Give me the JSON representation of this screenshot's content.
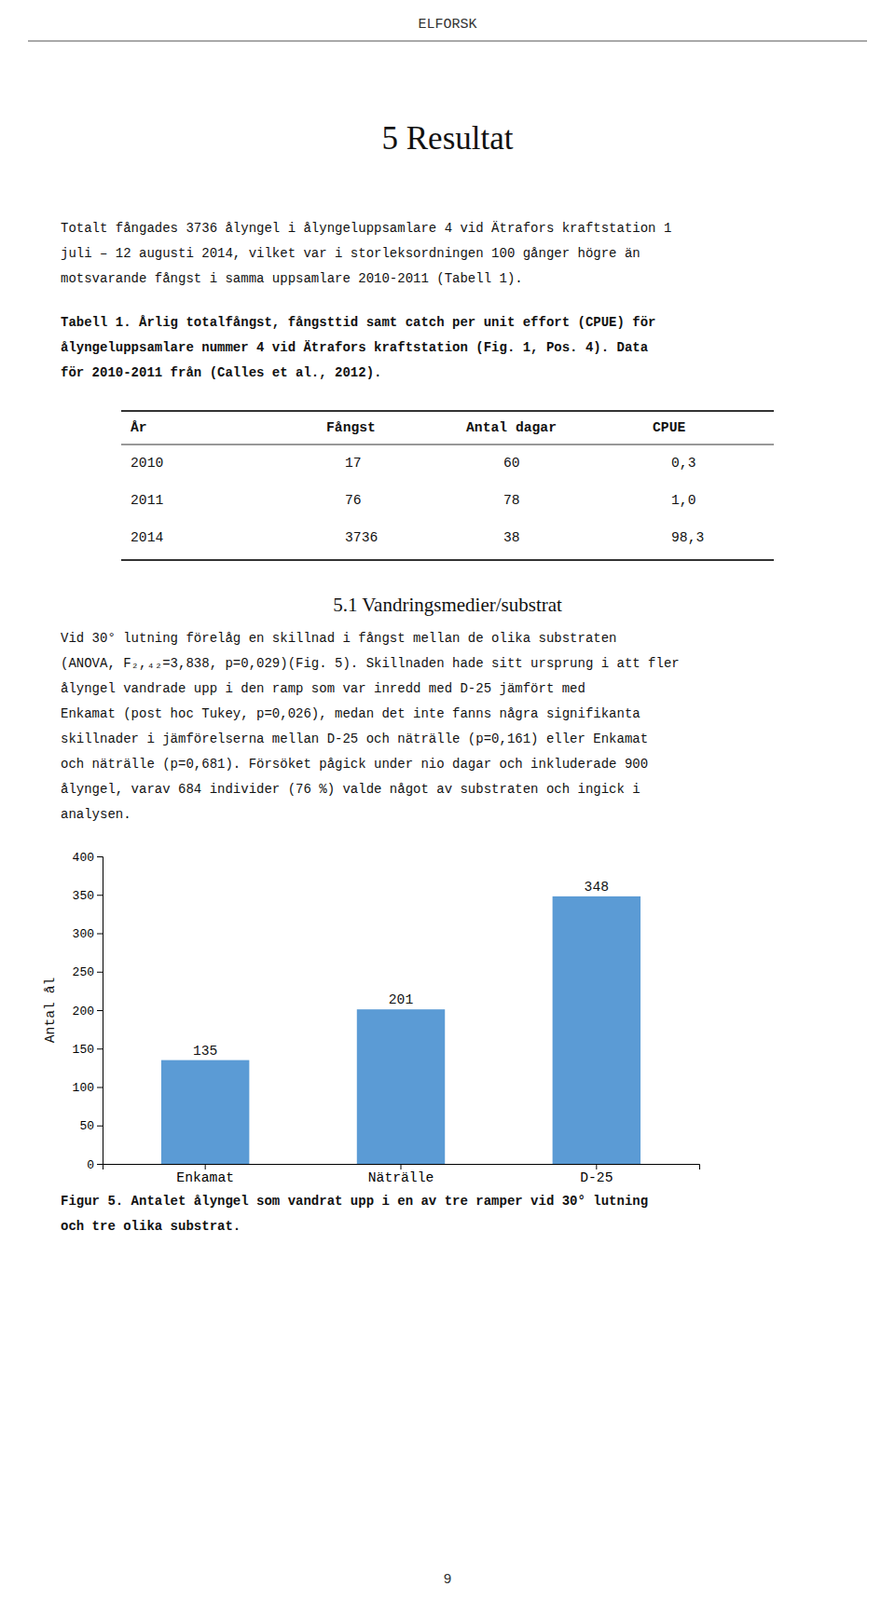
{
  "page": {
    "header": "ELFORSK",
    "section_title": "5   Resultat",
    "para1": [
      "Totalt fångades 3736 ålyngel i ålyngeluppsamlare 4 vid Ätrafors kraftstation 1",
      "juli – 12 augusti 2014, vilket var i storleksordningen 100 gånger högre än",
      "motsvarande fångst i samma uppsamlare 2010-2011 (Tabell 1)."
    ],
    "table_caption": [
      "Tabell 1. Årlig totalfångst, fångsttid samt catch per unit effort (CPUE) för",
      "ålyngeluppsamlare nummer 4 vid Ätrafors kraftstation (Fig. 1, Pos. 4). Data",
      "för 2010-2011 från (Calles et al., 2012)."
    ],
    "table_headers": [
      "År",
      "Fångst",
      "Antal dagar",
      "CPUE"
    ],
    "table_rows": [
      [
        "2010",
        "17",
        "60",
        "0,3"
      ],
      [
        "2011",
        "76",
        "78",
        "1,0"
      ],
      [
        "2014",
        "3736",
        "38",
        "98,3"
      ]
    ],
    "section2_title": "5.1   Vandringsmedier/substrat",
    "para2": [
      "Vid 30° lutning förelåg en skillnad i fångst mellan de olika substraten",
      "(ANOVA, F₂,₄₂=3,838, p=0,029)(Fig. 5). Skillnaden hade sitt ursprung i att fler",
      "ålyngel vandrade upp i den ramp som var inredd med D-25 jämfört med",
      "Enkamat (post hoc Tukey, p=0,026), medan det inte fanns några signifikanta",
      "skillnader i jämförelserna mellan D-25 och näträlle (p=0,161) eller Enkamat",
      "och näträlle (p=0,681). Försöket pågick under nio dagar och inkluderade 900",
      "ålyngel, varav 684 individer (76 %) valde något av substraten och ingick i",
      "analysen."
    ],
    "fig_caption": [
      "Figur 5. Antalet ålyngel som vandrat upp i en av tre ramper vid 30° lutning",
      "och tre olika substrat."
    ],
    "footer": "9"
  },
  "chart_data": {
    "type": "bar",
    "categories": [
      "Enkamat",
      "Näträlle",
      "D-25"
    ],
    "values": [
      135,
      201,
      348
    ],
    "color": "#5B9BD5",
    "ylabel": "Antal ål",
    "ylim": [
      0,
      400
    ],
    "yticks": [
      0,
      50,
      100,
      150,
      200,
      250,
      300,
      350,
      400
    ],
    "grid": false,
    "data_labels": true
  }
}
